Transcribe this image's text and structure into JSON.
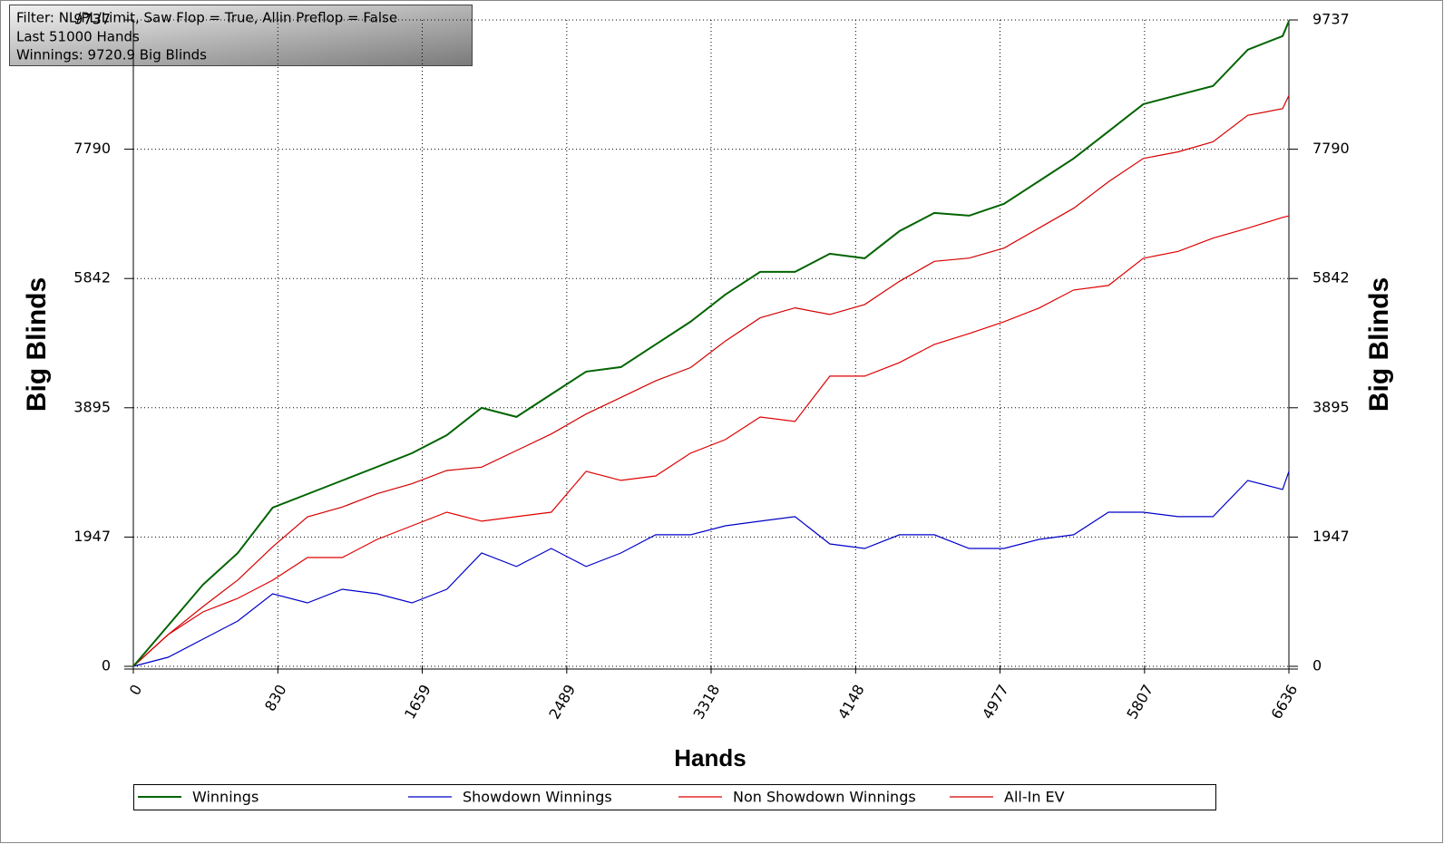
{
  "chart_data": {
    "type": "line",
    "annotations": [
      "Filter: NL/PL/Limit, Saw Flop = True, Allin Preflop = False",
      "Last  51000 Hands",
      "Winnings: 9720.9 Big Blinds"
    ],
    "x_label": "Hands",
    "y_label": "Big Blinds",
    "x": [
      0,
      200,
      400,
      600,
      800,
      1000,
      1200,
      1400,
      1600,
      1800,
      2000,
      2200,
      2400,
      2600,
      2800,
      3000,
      3200,
      3400,
      3600,
      3800,
      4000,
      4200,
      4400,
      4600,
      4800,
      5000,
      5200,
      5400,
      5600,
      5800,
      6000,
      6200,
      6400,
      6600,
      6636
    ],
    "series": [
      {
        "name": "Winnings",
        "color": "#006400",
        "values": [
          0,
          615,
          1230,
          1707,
          2390,
          2595,
          2800,
          3005,
          3210,
          3483,
          3893,
          3757,
          4098,
          4440,
          4508,
          4849,
          5191,
          5601,
          5942,
          5942,
          6215,
          6147,
          6557,
          6830,
          6789,
          6967,
          7308,
          7650,
          8059,
          8469,
          8606,
          8742,
          9289,
          9494,
          9721
        ]
      },
      {
        "name": "Showdown Winnings",
        "color": "#0000c8",
        "values": [
          0,
          137,
          410,
          683,
          1093,
          956,
          1161,
          1093,
          956,
          1161,
          1707,
          1503,
          1776,
          1503,
          1707,
          1981,
          1981,
          2117,
          2186,
          2254,
          1844,
          1776,
          1981,
          1981,
          1776,
          1776,
          1912,
          1981,
          2322,
          2322,
          2254,
          2254,
          2800,
          2664,
          2937
        ]
      },
      {
        "name": "Non Showdown Winnings",
        "color": "#e00000",
        "values": [
          0,
          478,
          820,
          1024,
          1297,
          1639,
          1639,
          1912,
          2117,
          2322,
          2186,
          2254,
          2322,
          2937,
          2801,
          2868,
          3210,
          3415,
          3756,
          3688,
          4371,
          4371,
          4576,
          4849,
          5013,
          5191,
          5396,
          5669,
          5737,
          6147,
          6250,
          6450,
          6600,
          6762,
          6784
        ]
      },
      {
        "name": "All-In EV",
        "color": "#d40000",
        "values": [
          0,
          480,
          900,
          1300,
          1800,
          2250,
          2400,
          2600,
          2750,
          2950,
          3000,
          3250,
          3500,
          3800,
          4050,
          4300,
          4500,
          4900,
          5250,
          5400,
          5300,
          5450,
          5800,
          6100,
          6150,
          6300,
          6600,
          6900,
          7300,
          7650,
          7750,
          7900,
          8300,
          8400,
          8600
        ]
      }
    ],
    "xlim": [
      0,
      6636
    ],
    "ylim": [
      0,
      9737
    ],
    "xticks": [
      0,
      830,
      1659,
      2489,
      3318,
      4148,
      4977,
      5807,
      6636
    ],
    "yticks": [
      0,
      1947,
      3895,
      5842,
      7790,
      9737
    ],
    "grid": true,
    "legend": "bottom"
  }
}
